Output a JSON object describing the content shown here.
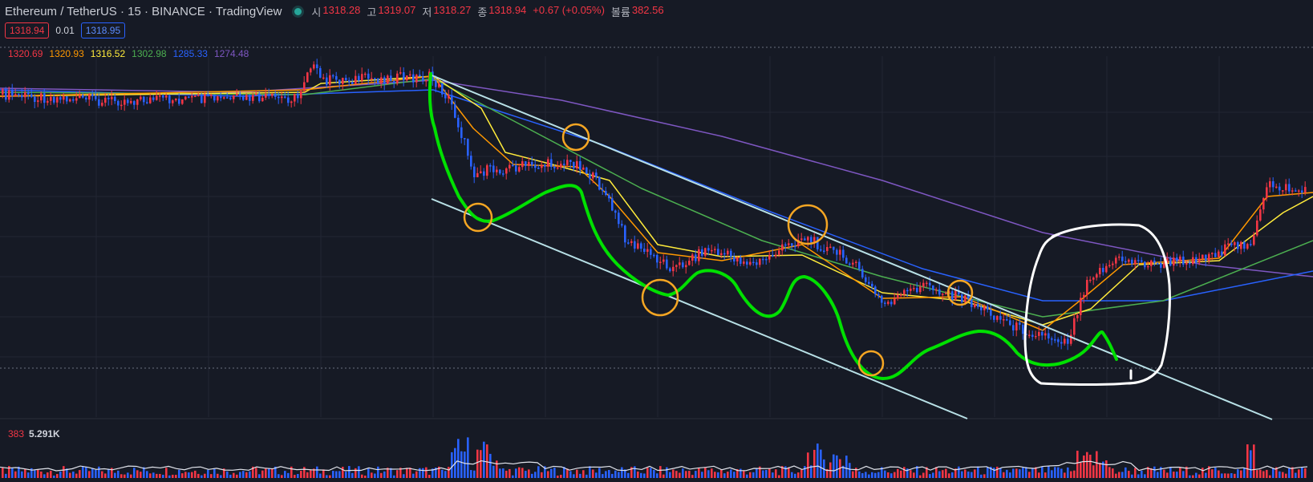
{
  "header": {
    "title": "Ethereum / TetherUS · 15 · BINANCE · TradingView",
    "ohlc": [
      {
        "label": "시",
        "value": "1318.28"
      },
      {
        "label": "고",
        "value": "1319.07"
      },
      {
        "label": "저",
        "value": "1318.27"
      },
      {
        "label": "종",
        "value": "1318.94"
      }
    ],
    "change": "+0.67 (+0.05%)",
    "volume_label": "볼륨",
    "volume_value": "382.56"
  },
  "price_boxes": {
    "sell": "1318.94",
    "spread": "0.01",
    "buy": "1318.95"
  },
  "moving_averages": [
    {
      "value": "1320.69",
      "color": "#f23645"
    },
    {
      "value": "1320.93",
      "color": "#ff9800"
    },
    {
      "value": "1316.52",
      "color": "#ffeb3b"
    },
    {
      "value": "1302.98",
      "color": "#4caf50"
    },
    {
      "value": "1285.33",
      "color": "#2962ff"
    },
    {
      "value": "1274.48",
      "color": "#7e57c2"
    }
  ],
  "volume_readout": {
    "value": "383",
    "ma": "5.291K"
  },
  "colors": {
    "up": "#f23645",
    "down": "#2962ff",
    "background": "#161a25",
    "annotation_line": "#00e000",
    "annotation_circle": "#f5a623",
    "annotation_box": "#ffffff",
    "trendline": "#b8e0e6"
  }
}
